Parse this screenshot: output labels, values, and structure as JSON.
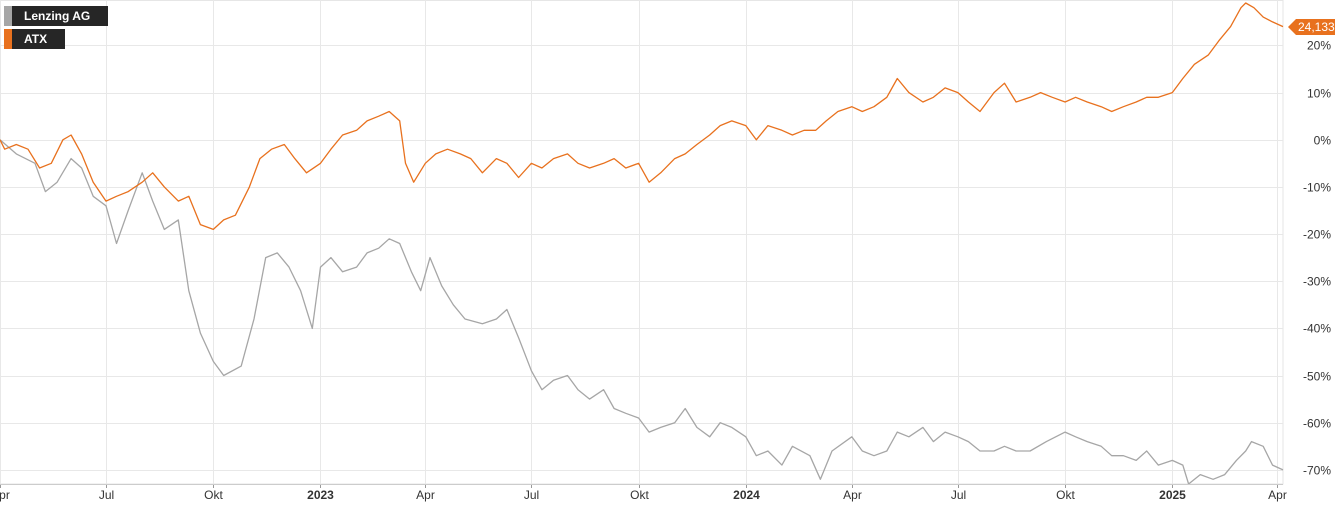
{
  "legend": {
    "items": [
      {
        "label": "Lenzing AG",
        "color": "#a6a6a6"
      },
      {
        "label": "ATX",
        "color": "#e8711e"
      }
    ]
  },
  "badge": {
    "value": "24,133"
  },
  "chart_data": {
    "type": "line",
    "y_unit": "%",
    "ylim": [
      -73,
      29
    ],
    "y_ticks": [
      20,
      10,
      0,
      -10,
      -20,
      -30,
      -40,
      -50,
      -60,
      -70
    ],
    "y_tick_labels": [
      "20%",
      "10%",
      "0%",
      "-10%",
      "-20%",
      "-30%",
      "-40%",
      "-50%",
      "-60%",
      "-70%"
    ],
    "x_range": [
      "2022-04-01",
      "2025-04-06"
    ],
    "x_ticks": [
      {
        "date": "2022-04-01",
        "label": "Apr",
        "bold": false
      },
      {
        "date": "2022-07-01",
        "label": "Jul",
        "bold": false
      },
      {
        "date": "2022-10-01",
        "label": "Okt",
        "bold": false
      },
      {
        "date": "2023-01-01",
        "label": "2023",
        "bold": true
      },
      {
        "date": "2023-04-01",
        "label": "Apr",
        "bold": false
      },
      {
        "date": "2023-07-01",
        "label": "Jul",
        "bold": false
      },
      {
        "date": "2023-10-01",
        "label": "Okt",
        "bold": false
      },
      {
        "date": "2024-01-01",
        "label": "2024",
        "bold": true
      },
      {
        "date": "2024-04-01",
        "label": "Apr",
        "bold": false
      },
      {
        "date": "2024-07-01",
        "label": "Jul",
        "bold": false
      },
      {
        "date": "2024-10-01",
        "label": "Okt",
        "bold": false
      },
      {
        "date": "2025-01-01",
        "label": "2025",
        "bold": true
      },
      {
        "date": "2025-04-01",
        "label": "Apr",
        "bold": false
      }
    ],
    "grid": true,
    "legend_position": "top-left",
    "series": [
      {
        "name": "Lenzing AG",
        "color": "#a6a6a6",
        "points": [
          [
            "2022-04-01",
            0
          ],
          [
            "2022-04-15",
            -3
          ],
          [
            "2022-05-01",
            -5
          ],
          [
            "2022-05-10",
            -11
          ],
          [
            "2022-05-20",
            -9
          ],
          [
            "2022-06-01",
            -4
          ],
          [
            "2022-06-10",
            -6
          ],
          [
            "2022-06-20",
            -12
          ],
          [
            "2022-07-01",
            -14
          ],
          [
            "2022-07-10",
            -22
          ],
          [
            "2022-07-20",
            -15
          ],
          [
            "2022-08-01",
            -7
          ],
          [
            "2022-08-10",
            -13
          ],
          [
            "2022-08-20",
            -19
          ],
          [
            "2022-09-01",
            -17
          ],
          [
            "2022-09-10",
            -32
          ],
          [
            "2022-09-20",
            -41
          ],
          [
            "2022-10-01",
            -47
          ],
          [
            "2022-10-10",
            -50
          ],
          [
            "2022-10-25",
            -48
          ],
          [
            "2022-11-05",
            -38
          ],
          [
            "2022-11-15",
            -25
          ],
          [
            "2022-11-25",
            -24
          ],
          [
            "2022-12-05",
            -27
          ],
          [
            "2022-12-15",
            -32
          ],
          [
            "2022-12-25",
            -40
          ],
          [
            "2023-01-01",
            -27
          ],
          [
            "2023-01-10",
            -25
          ],
          [
            "2023-01-20",
            -28
          ],
          [
            "2023-02-01",
            -27
          ],
          [
            "2023-02-10",
            -24
          ],
          [
            "2023-02-20",
            -23
          ],
          [
            "2023-03-01",
            -21
          ],
          [
            "2023-03-10",
            -22
          ],
          [
            "2023-03-20",
            -28
          ],
          [
            "2023-03-28",
            -32
          ],
          [
            "2023-04-05",
            -25
          ],
          [
            "2023-04-15",
            -31
          ],
          [
            "2023-04-25",
            -35
          ],
          [
            "2023-05-05",
            -38
          ],
          [
            "2023-05-20",
            -39
          ],
          [
            "2023-06-01",
            -38
          ],
          [
            "2023-06-10",
            -36
          ],
          [
            "2023-06-20",
            -42
          ],
          [
            "2023-07-01",
            -49
          ],
          [
            "2023-07-10",
            -53
          ],
          [
            "2023-07-20",
            -51
          ],
          [
            "2023-08-01",
            -50
          ],
          [
            "2023-08-10",
            -53
          ],
          [
            "2023-08-20",
            -55
          ],
          [
            "2023-09-01",
            -53
          ],
          [
            "2023-09-10",
            -57
          ],
          [
            "2023-09-20",
            -58
          ],
          [
            "2023-10-01",
            -59
          ],
          [
            "2023-10-10",
            -62
          ],
          [
            "2023-10-20",
            -61
          ],
          [
            "2023-11-01",
            -60
          ],
          [
            "2023-11-10",
            -57
          ],
          [
            "2023-11-20",
            -61
          ],
          [
            "2023-12-01",
            -63
          ],
          [
            "2023-12-10",
            -60
          ],
          [
            "2023-12-20",
            -61
          ],
          [
            "2024-01-01",
            -63
          ],
          [
            "2024-01-10",
            -67
          ],
          [
            "2024-01-20",
            -66
          ],
          [
            "2024-02-01",
            -69
          ],
          [
            "2024-02-10",
            -65
          ],
          [
            "2024-02-25",
            -67
          ],
          [
            "2024-03-05",
            -72
          ],
          [
            "2024-03-15",
            -66
          ],
          [
            "2024-04-01",
            -63
          ],
          [
            "2024-04-10",
            -66
          ],
          [
            "2024-04-20",
            -67
          ],
          [
            "2024-05-01",
            -66
          ],
          [
            "2024-05-10",
            -62
          ],
          [
            "2024-05-20",
            -63
          ],
          [
            "2024-06-01",
            -61
          ],
          [
            "2024-06-10",
            -64
          ],
          [
            "2024-06-20",
            -62
          ],
          [
            "2024-07-01",
            -63
          ],
          [
            "2024-07-10",
            -64
          ],
          [
            "2024-07-20",
            -66
          ],
          [
            "2024-08-01",
            -66
          ],
          [
            "2024-08-10",
            -65
          ],
          [
            "2024-08-20",
            -66
          ],
          [
            "2024-09-01",
            -66
          ],
          [
            "2024-09-15",
            -64
          ],
          [
            "2024-10-01",
            -62
          ],
          [
            "2024-10-10",
            -63
          ],
          [
            "2024-10-20",
            -64
          ],
          [
            "2024-11-01",
            -65
          ],
          [
            "2024-11-10",
            -67
          ],
          [
            "2024-11-20",
            -67
          ],
          [
            "2024-12-01",
            -68
          ],
          [
            "2024-12-10",
            -66
          ],
          [
            "2024-12-20",
            -69
          ],
          [
            "2025-01-01",
            -68
          ],
          [
            "2025-01-10",
            -69
          ],
          [
            "2025-01-15",
            -73
          ],
          [
            "2025-01-25",
            -71
          ],
          [
            "2025-02-05",
            -72
          ],
          [
            "2025-02-15",
            -71
          ],
          [
            "2025-02-25",
            -68
          ],
          [
            "2025-03-05",
            -66
          ],
          [
            "2025-03-10",
            -64
          ],
          [
            "2025-03-20",
            -65
          ],
          [
            "2025-03-28",
            -69
          ],
          [
            "2025-04-06",
            -70
          ]
        ]
      },
      {
        "name": "ATX",
        "color": "#e8711e",
        "points": [
          [
            "2022-04-01",
            0
          ],
          [
            "2022-04-05",
            -2
          ],
          [
            "2022-04-15",
            -1
          ],
          [
            "2022-04-25",
            -2
          ],
          [
            "2022-05-05",
            -6
          ],
          [
            "2022-05-15",
            -5
          ],
          [
            "2022-05-25",
            0
          ],
          [
            "2022-06-01",
            1
          ],
          [
            "2022-06-10",
            -3
          ],
          [
            "2022-06-20",
            -9
          ],
          [
            "2022-07-01",
            -13
          ],
          [
            "2022-07-10",
            -12
          ],
          [
            "2022-07-20",
            -11
          ],
          [
            "2022-08-01",
            -9
          ],
          [
            "2022-08-10",
            -7
          ],
          [
            "2022-08-20",
            -10
          ],
          [
            "2022-09-01",
            -13
          ],
          [
            "2022-09-10",
            -12
          ],
          [
            "2022-09-20",
            -18
          ],
          [
            "2022-10-01",
            -19
          ],
          [
            "2022-10-10",
            -17
          ],
          [
            "2022-10-20",
            -16
          ],
          [
            "2022-11-01",
            -10
          ],
          [
            "2022-11-10",
            -4
          ],
          [
            "2022-11-20",
            -2
          ],
          [
            "2022-12-01",
            -1
          ],
          [
            "2022-12-10",
            -4
          ],
          [
            "2022-12-20",
            -7
          ],
          [
            "2023-01-01",
            -5
          ],
          [
            "2023-01-10",
            -2
          ],
          [
            "2023-01-20",
            1
          ],
          [
            "2023-02-01",
            2
          ],
          [
            "2023-02-10",
            4
          ],
          [
            "2023-02-20",
            5
          ],
          [
            "2023-03-01",
            6
          ],
          [
            "2023-03-10",
            4
          ],
          [
            "2023-03-15",
            -5
          ],
          [
            "2023-03-22",
            -9
          ],
          [
            "2023-04-01",
            -5
          ],
          [
            "2023-04-10",
            -3
          ],
          [
            "2023-04-20",
            -2
          ],
          [
            "2023-05-01",
            -3
          ],
          [
            "2023-05-10",
            -4
          ],
          [
            "2023-05-20",
            -7
          ],
          [
            "2023-06-01",
            -4
          ],
          [
            "2023-06-10",
            -5
          ],
          [
            "2023-06-20",
            -8
          ],
          [
            "2023-07-01",
            -5
          ],
          [
            "2023-07-10",
            -6
          ],
          [
            "2023-07-20",
            -4
          ],
          [
            "2023-08-01",
            -3
          ],
          [
            "2023-08-10",
            -5
          ],
          [
            "2023-08-20",
            -6
          ],
          [
            "2023-09-01",
            -5
          ],
          [
            "2023-09-10",
            -4
          ],
          [
            "2023-09-20",
            -6
          ],
          [
            "2023-10-01",
            -5
          ],
          [
            "2023-10-10",
            -9
          ],
          [
            "2023-10-20",
            -7
          ],
          [
            "2023-11-01",
            -4
          ],
          [
            "2023-11-10",
            -3
          ],
          [
            "2023-11-20",
            -1
          ],
          [
            "2023-12-01",
            1
          ],
          [
            "2023-12-10",
            3
          ],
          [
            "2023-12-20",
            4
          ],
          [
            "2024-01-01",
            3
          ],
          [
            "2024-01-10",
            0
          ],
          [
            "2024-01-20",
            3
          ],
          [
            "2024-02-01",
            2
          ],
          [
            "2024-02-10",
            1
          ],
          [
            "2024-02-20",
            2
          ],
          [
            "2024-03-01",
            2
          ],
          [
            "2024-03-10",
            4
          ],
          [
            "2024-03-20",
            6
          ],
          [
            "2024-04-01",
            7
          ],
          [
            "2024-04-10",
            6
          ],
          [
            "2024-04-20",
            7
          ],
          [
            "2024-05-01",
            9
          ],
          [
            "2024-05-10",
            13
          ],
          [
            "2024-05-20",
            10
          ],
          [
            "2024-06-01",
            8
          ],
          [
            "2024-06-10",
            9
          ],
          [
            "2024-06-20",
            11
          ],
          [
            "2024-07-01",
            10
          ],
          [
            "2024-07-10",
            8
          ],
          [
            "2024-07-20",
            6
          ],
          [
            "2024-08-01",
            10
          ],
          [
            "2024-08-10",
            12
          ],
          [
            "2024-08-20",
            8
          ],
          [
            "2024-09-01",
            9
          ],
          [
            "2024-09-10",
            10
          ],
          [
            "2024-09-20",
            9
          ],
          [
            "2024-10-01",
            8
          ],
          [
            "2024-10-10",
            9
          ],
          [
            "2024-10-20",
            8
          ],
          [
            "2024-11-01",
            7
          ],
          [
            "2024-11-10",
            6
          ],
          [
            "2024-11-20",
            7
          ],
          [
            "2024-12-01",
            8
          ],
          [
            "2024-12-10",
            9
          ],
          [
            "2024-12-20",
            9
          ],
          [
            "2025-01-01",
            10
          ],
          [
            "2025-01-10",
            13
          ],
          [
            "2025-01-20",
            16
          ],
          [
            "2025-02-01",
            18
          ],
          [
            "2025-02-10",
            21
          ],
          [
            "2025-02-20",
            24
          ],
          [
            "2025-03-01",
            28
          ],
          [
            "2025-03-05",
            29
          ],
          [
            "2025-03-12",
            28
          ],
          [
            "2025-03-20",
            26
          ],
          [
            "2025-03-28",
            25
          ],
          [
            "2025-04-06",
            24
          ]
        ]
      }
    ]
  }
}
